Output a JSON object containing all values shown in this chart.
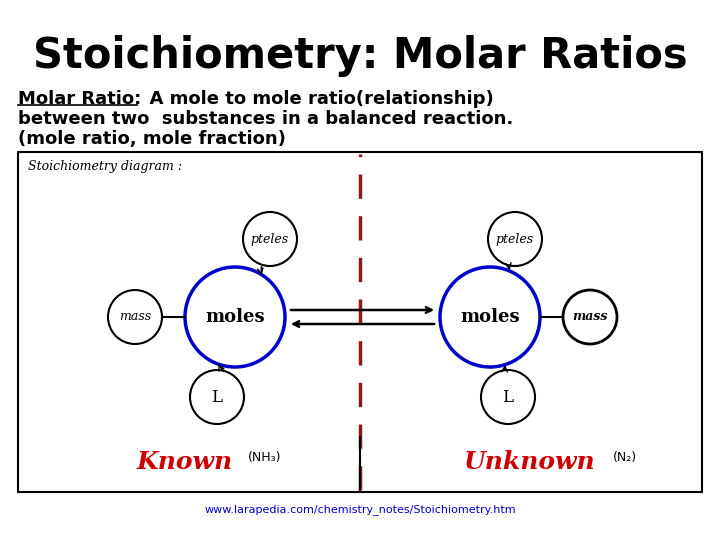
{
  "title": "Stoichiometry: Molar Ratios",
  "line1_underlined": "Molar Ratio:",
  "line1_rest": "  A mole to mole ratio(relationship)",
  "line2": "between two  substances in a balanced reaction.",
  "line3": "(mole ratio, mole fraction)",
  "diagram_label": "Stoichiometry diagram :",
  "known_label": "Known",
  "unknown_label": "Unknown",
  "nh3_label": "(NH₃)",
  "n2_label": "(N₂)",
  "url": "www.larapedia.com/chemistry_notes/Stoichiometry.htm",
  "bg_color": "#ffffff",
  "title_color": "#000000",
  "known_color": "#cc0000",
  "unknown_color": "#cc0000",
  "dashed_line_color": "#8b1a1a",
  "circle_big_color": "#0000cc",
  "circle_small_color": "#000000",
  "text_color": "#000000",
  "url_color": "#0000cc"
}
